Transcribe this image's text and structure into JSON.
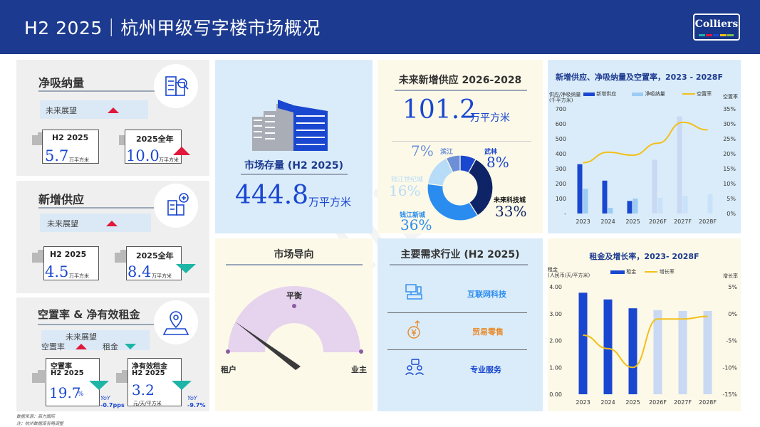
{
  "header": {
    "title": "H2 2025｜杭州甲级写字楼市场概况",
    "logo_text": "Colliers"
  },
  "absorption": {
    "title": "净吸纳量",
    "outlook_label": "未来展望",
    "h2_label": "H2 2025",
    "h2_value": "5.7",
    "h2_unit": "万平方米",
    "year_label": "2025全年",
    "year_value": "10.0",
    "year_unit": "万平方米"
  },
  "supply": {
    "title": "新增供应",
    "outlook_label": "未来展望",
    "h2_label": "H2 2025",
    "h2_value": "4.5",
    "h2_unit": "万平方米",
    "year_label": "2025全年",
    "year_value": "8.4",
    "year_unit": "万平方米"
  },
  "vacancy": {
    "title": "空置率 & 净有效租金",
    "outlook_label": "未来展望",
    "vac_label": "空置率",
    "rent_label": "租金",
    "box1_label1": "空置率",
    "box1_label2": "H2 2025",
    "box1_value": "19.7",
    "box1_unit": "%",
    "box1_yoy_label": "YoY",
    "box1_yoy": "-0.7pps",
    "box2_label1": "净有效租金",
    "box2_label2": "H2 2025",
    "box2_value": "3.2",
    "box2_unit": "元/天/平方米",
    "box2_yoy_label": "YoY",
    "box2_yoy": "-9.7%"
  },
  "stock": {
    "title": "市场存量 (H2 2025)",
    "value": "444.8",
    "unit": "万平方米"
  },
  "orientation": {
    "title": "市场导向",
    "left": "租户",
    "mid": "平衡",
    "right": "业主"
  },
  "future_supply": {
    "title": "未来新增供应 2026-2028",
    "value": "101.2",
    "unit": "万平方米",
    "segments": [
      {
        "name": "未来科技城",
        "pct": "33%",
        "value": 33,
        "color": "#0f2466"
      },
      {
        "name": "钱江新城",
        "pct": "36%",
        "value": 36,
        "color": "#2b8cf0"
      },
      {
        "name": "钱江世纪城",
        "pct": "16%",
        "value": 16,
        "color": "#b7dcf8"
      },
      {
        "name": "滨江",
        "pct": "7%",
        "value": 7,
        "color": "#6c8fd8"
      },
      {
        "name": "武林",
        "pct": "8%",
        "value": 8,
        "color": "#1a47d0"
      }
    ]
  },
  "demand": {
    "title": "主要需求行业 (H2 2025)",
    "items": [
      {
        "name": "互联网科技",
        "color": "#2b8cf0",
        "icon": "computer-icon"
      },
      {
        "name": "贸易零售",
        "color": "#e88a2a",
        "icon": "trade-icon"
      },
      {
        "name": "专业服务",
        "color": "#1a47d0",
        "icon": "people-icon"
      }
    ]
  },
  "chart1": {
    "title": "新增供应、净吸纳量及空置率，2023 - 2028F",
    "yleft_label1": "供应/净吸纳量",
    "yleft_label2": "(千平方米)",
    "yright_label": "空置率",
    "legend": [
      "新增供应",
      "净吸纳量",
      "空置率"
    ],
    "left_ticks": [
      "700",
      "600",
      "500",
      "400",
      "300",
      "200",
      "100",
      "-"
    ],
    "right_ticks": [
      "35%",
      "30%",
      "25%",
      "20%",
      "15%",
      "10%",
      "5%",
      "0%"
    ]
  },
  "chart2": {
    "title": "租金及增长率，2023- 2028F",
    "yleft_label1": "租金",
    "yleft_label2": "(人民币/天/平方米)",
    "yright_label": "增长率",
    "legend": [
      "租金",
      "增长率"
    ],
    "left_ticks": [
      "4.00",
      "3.00",
      "2.00",
      "1.00",
      "0.00"
    ],
    "right_ticks": [
      "5%",
      "0%",
      "-5%",
      "-10%",
      "-15%"
    ]
  },
  "chart_data": [
    {
      "type": "bar",
      "title": "新增供应、净吸纳量及空置率，2023 - 2028F",
      "categories": [
        "2023",
        "2024",
        "2025",
        "2026F",
        "2027F",
        "2028F"
      ],
      "series": [
        {
          "name": "新增供应",
          "kind": "bar",
          "values": [
            330,
            220,
            84,
            360,
            650,
            0
          ],
          "color": "#1a47d0",
          "forecast_color": "#c9d8f3"
        },
        {
          "name": "净吸纳量",
          "kind": "bar",
          "values": [
            165,
            38,
            100,
            105,
            118,
            128
          ],
          "color": "#9ccbf4",
          "forecast_color": "#c9e2fa"
        },
        {
          "name": "空置率",
          "kind": "line",
          "values": [
            17,
            20.5,
            19.5,
            23.5,
            30.5,
            28
          ],
          "color": "#f2c01a"
        }
      ],
      "ylim": [
        0,
        700
      ],
      "y2lim": [
        0,
        35
      ]
    },
    {
      "type": "bar",
      "title": "租金及增长率，2023- 2028F",
      "categories": [
        "2023",
        "2024",
        "2025",
        "2026F",
        "2027F",
        "2028F"
      ],
      "series": [
        {
          "name": "租金",
          "kind": "bar",
          "values": [
            3.78,
            3.53,
            3.2,
            3.13,
            3.1,
            3.1
          ],
          "color": "#1a47d0",
          "forecast_color": "#c9d8f3"
        },
        {
          "name": "增长率",
          "kind": "line",
          "values": [
            -4,
            -6.5,
            -10,
            -1,
            -1,
            -0.5
          ],
          "color": "#f2c01a"
        }
      ],
      "ylim": [
        0,
        4
      ],
      "y2lim": [
        -15,
        5
      ]
    }
  ],
  "footer": {
    "source": "数据来源：高力国际",
    "note": "注：杭州数据库有略调整"
  },
  "watermark": "Colliers"
}
